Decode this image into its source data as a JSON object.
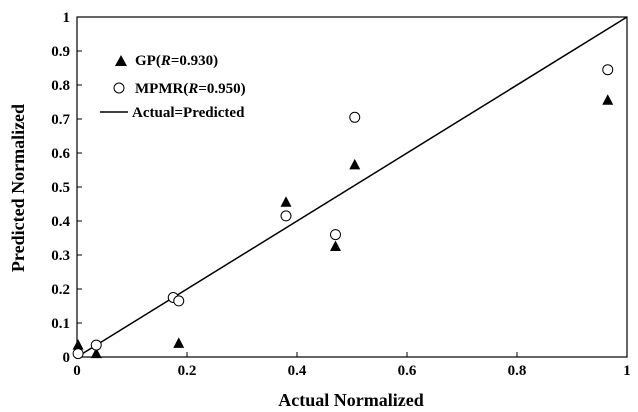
{
  "chart_data": {
    "type": "scatter",
    "title": "",
    "xlabel": "Actual Normalized",
    "ylabel": "Predicted Normalized",
    "xlim": [
      0,
      1
    ],
    "ylim": [
      0,
      1
    ],
    "x_ticks": [
      "0",
      "0.2",
      "0.4",
      "0.6",
      "0.8",
      "1"
    ],
    "y_ticks": [
      "0",
      "0.1",
      "0.2",
      "0.3",
      "0.4",
      "0.5",
      "0.6",
      "0.7",
      "0.8",
      "0.9",
      "1"
    ],
    "grid": false,
    "legend_position": "top-left",
    "legend": {
      "gp": {
        "prefix": "GP(",
        "r": "R",
        "suffix": "=0.930)"
      },
      "mpmr": {
        "prefix": "MPMR(",
        "r": "R",
        "suffix": "=0.950)"
      },
      "line": "Actual=Predicted"
    },
    "series": [
      {
        "name": "GP(R=0.930)",
        "marker": "filled-triangle",
        "x": [
          0.002,
          0.035,
          0.185,
          0.38,
          0.47,
          0.505,
          0.965
        ],
        "y": [
          0.035,
          0.01,
          0.04,
          0.455,
          0.325,
          0.565,
          0.755
        ]
      },
      {
        "name": "MPMR(R=0.950)",
        "marker": "open-circle",
        "x": [
          0.002,
          0.035,
          0.175,
          0.185,
          0.38,
          0.47,
          0.505,
          0.965
        ],
        "y": [
          0.01,
          0.035,
          0.175,
          0.165,
          0.415,
          0.36,
          0.705,
          0.845
        ]
      },
      {
        "name": "Actual=Predicted",
        "marker": "line",
        "x": [
          0,
          1
        ],
        "y": [
          0,
          1
        ]
      }
    ],
    "colors": {
      "marker": "#000000",
      "axes": "#000000"
    }
  }
}
